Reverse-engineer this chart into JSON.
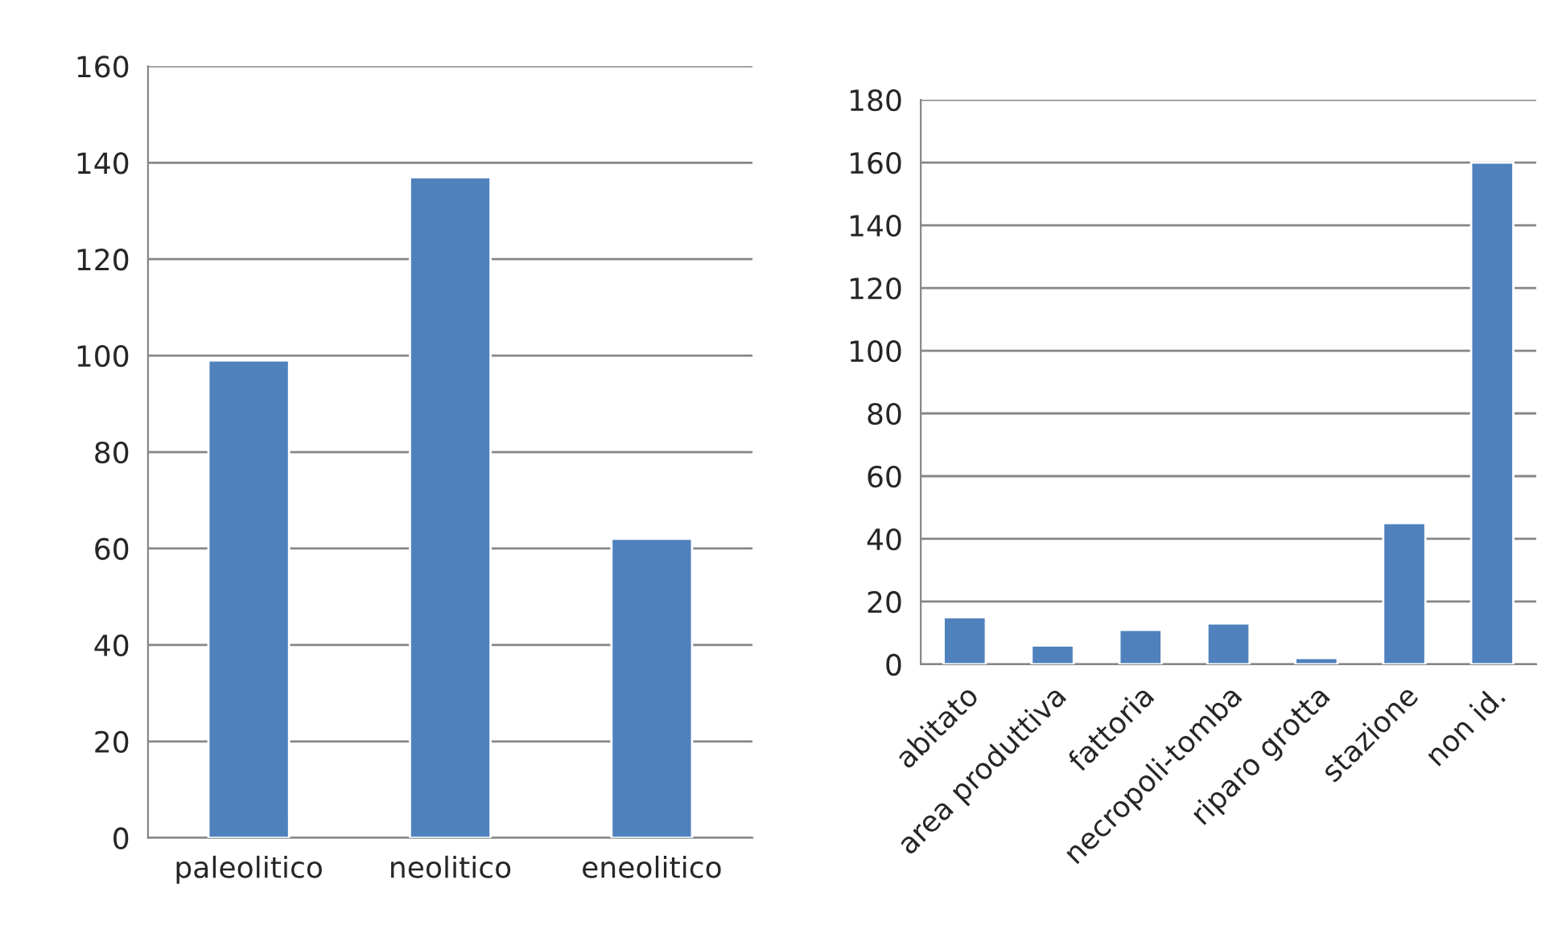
{
  "chart_data": [
    {
      "type": "bar",
      "categories": [
        "paleolitico",
        "neolitico",
        "eneolitico"
      ],
      "values": [
        99,
        137,
        62
      ],
      "color": "#4f81bd",
      "ylim": [
        0,
        160
      ],
      "yticks": [
        0,
        20,
        40,
        60,
        80,
        100,
        120,
        140,
        160
      ],
      "grid": "y"
    },
    {
      "type": "bar",
      "categories": [
        "abitato",
        "area produttiva",
        "fattoria",
        "necropoli-tomba",
        "riparo grotta",
        "stazione",
        "non id."
      ],
      "values": [
        15,
        6,
        11,
        13,
        2,
        45,
        160
      ],
      "color": "#4f81bd",
      "ylim": [
        0,
        180
      ],
      "yticks": [
        0,
        20,
        40,
        60,
        80,
        100,
        120,
        140,
        160,
        180
      ],
      "grid": "y"
    }
  ]
}
